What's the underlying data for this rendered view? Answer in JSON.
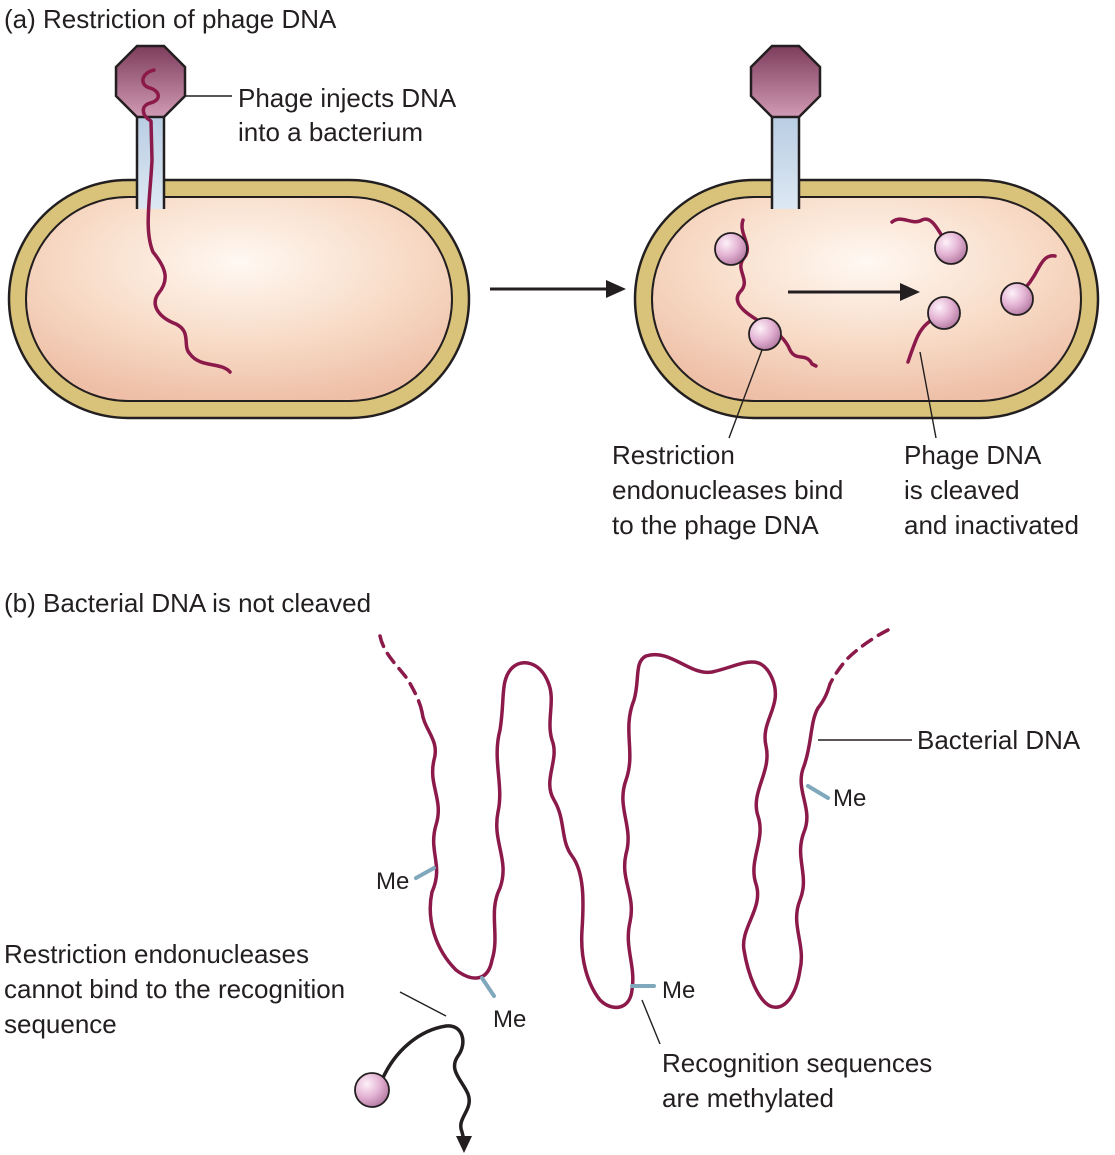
{
  "colors": {
    "dna": "#8b1a4a",
    "capsid": "#a0607a",
    "tail": "#c8d8ea",
    "wall": "#d9c37a",
    "cytoplasm": "#f6d8c6",
    "enzyme": "#e7b8d8",
    "methyl_tag": "#7fa8bd",
    "text": "#231f20"
  },
  "panel_a": {
    "title": "(a) Restriction of phage DNA",
    "label_injects_1": "Phage injects DNA",
    "label_injects_2": "into a bacterium",
    "label_bind_1": "Restriction",
    "label_bind_2": "endonucleases bind",
    "label_bind_3": "to the phage DNA",
    "label_cleaved_1": "Phage DNA",
    "label_cleaved_2": "is cleaved",
    "label_cleaved_3": "and inactivated"
  },
  "panel_b": {
    "title": "(b) Bacterial DNA is not cleaved",
    "label_bacterial_dna": "Bacterial DNA",
    "methyl_tag": "Me",
    "label_cannot_1": "Restriction endonucleases",
    "label_cannot_2": "cannot bind to the recognition",
    "label_cannot_3": "sequence",
    "label_methylated_1": "Recognition sequences",
    "label_methylated_2": "are methylated"
  },
  "icons": [
    "phage-capsid-icon",
    "enzyme-sphere-icon",
    "arrow-icon"
  ]
}
